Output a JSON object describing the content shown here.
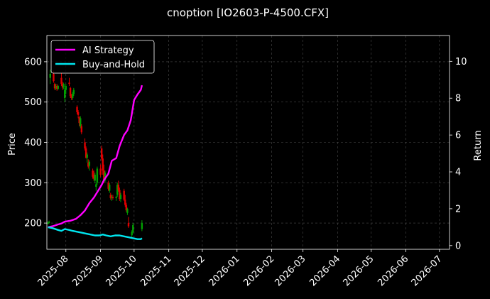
{
  "chart_data": {
    "type": "candlestick+line",
    "title": "cnoption [IO2603-P-4500.CFX]",
    "ylabel_left": "Price",
    "ylabel_right": "Return",
    "xlim": [
      "2025-07-15",
      "2026-07-10"
    ],
    "ylim_left": [
      135,
      665
    ],
    "ylim_right": [
      -0.2,
      11.4
    ],
    "grid": true,
    "legend_position": "upper-left",
    "colors": {
      "background": "#000000",
      "up": "#00a000",
      "down": "#e00000",
      "grid": "#4a4a4a",
      "ai_strategy": "#ff00ff",
      "buy_and_hold": "#00e5ee",
      "legend_border": "#ffffff"
    },
    "x_ticks": [
      "2025-08",
      "2025-09",
      "2025-10",
      "2025-11",
      "2025-12",
      "2026-01",
      "2026-02",
      "2026-03",
      "2026-04",
      "2026-05",
      "2026-06",
      "2026-07"
    ],
    "y_ticks_left": [
      200,
      300,
      400,
      500,
      600
    ],
    "y_ticks_right": [
      0,
      2,
      4,
      6,
      8,
      10
    ],
    "series": [
      {
        "name": "AI Strategy",
        "axis": "right",
        "points": [
          [
            "2025-07-16",
            1.0
          ],
          [
            "2025-07-20",
            1.05
          ],
          [
            "2025-07-25",
            1.15
          ],
          [
            "2025-07-28",
            1.2
          ],
          [
            "2025-07-31",
            1.3
          ],
          [
            "2025-08-05",
            1.35
          ],
          [
            "2025-08-10",
            1.45
          ],
          [
            "2025-08-14",
            1.65
          ],
          [
            "2025-08-18",
            1.9
          ],
          [
            "2025-08-22",
            2.3
          ],
          [
            "2025-08-26",
            2.6
          ],
          [
            "2025-08-29",
            2.9
          ],
          [
            "2025-09-02",
            3.3
          ],
          [
            "2025-09-04",
            3.55
          ],
          [
            "2025-09-08",
            3.9
          ],
          [
            "2025-09-11",
            4.6
          ],
          [
            "2025-09-15",
            4.75
          ],
          [
            "2025-09-18",
            5.4
          ],
          [
            "2025-09-22",
            6.0
          ],
          [
            "2025-09-25",
            6.25
          ],
          [
            "2025-09-28",
            6.8
          ],
          [
            "2025-10-01",
            7.9
          ],
          [
            "2025-10-04",
            8.2
          ],
          [
            "2025-10-07",
            8.45
          ],
          [
            "2025-10-08",
            8.7
          ]
        ]
      },
      {
        "name": "Buy-and-Hold",
        "axis": "right",
        "points": [
          [
            "2025-07-16",
            1.0
          ],
          [
            "2025-07-20",
            0.95
          ],
          [
            "2025-07-25",
            0.85
          ],
          [
            "2025-07-28",
            0.8
          ],
          [
            "2025-07-31",
            0.9
          ],
          [
            "2025-08-04",
            0.85
          ],
          [
            "2025-08-07",
            0.8
          ],
          [
            "2025-08-11",
            0.75
          ],
          [
            "2025-08-15",
            0.7
          ],
          [
            "2025-08-19",
            0.65
          ],
          [
            "2025-08-23",
            0.6
          ],
          [
            "2025-08-27",
            0.55
          ],
          [
            "2025-08-31",
            0.55
          ],
          [
            "2025-09-03",
            0.6
          ],
          [
            "2025-09-06",
            0.55
          ],
          [
            "2025-09-10",
            0.5
          ],
          [
            "2025-09-14",
            0.55
          ],
          [
            "2025-09-18",
            0.55
          ],
          [
            "2025-09-22",
            0.5
          ],
          [
            "2025-09-26",
            0.45
          ],
          [
            "2025-09-30",
            0.4
          ],
          [
            "2025-10-04",
            0.35
          ],
          [
            "2025-10-07",
            0.35
          ],
          [
            "2025-10-08",
            0.4
          ]
        ]
      }
    ],
    "candles": [
      [
        "2025-07-16",
        200,
        204,
        197,
        201
      ],
      [
        "2025-07-17",
        201,
        206,
        199,
        203
      ],
      [
        "2025-07-18",
        560,
        580,
        545,
        570
      ],
      [
        "2025-07-21",
        570,
        578,
        548,
        552
      ],
      [
        "2025-07-22",
        545,
        548,
        530,
        534
      ],
      [
        "2025-07-23",
        535,
        545,
        530,
        540
      ],
      [
        "2025-07-24",
        540,
        545,
        528,
        533
      ],
      [
        "2025-07-25",
        533,
        542,
        530,
        540
      ],
      [
        "2025-07-28",
        560,
        572,
        540,
        545
      ],
      [
        "2025-07-29",
        545,
        550,
        530,
        536
      ],
      [
        "2025-07-30",
        536,
        548,
        532,
        545
      ],
      [
        "2025-07-31",
        510,
        535,
        500,
        530
      ],
      [
        "2025-08-01",
        530,
        545,
        520,
        540
      ],
      [
        "2025-08-04",
        548,
        560,
        540,
        545
      ],
      [
        "2025-08-05",
        535,
        538,
        510,
        515
      ],
      [
        "2025-08-06",
        515,
        520,
        505,
        510
      ],
      [
        "2025-08-07",
        510,
        525,
        505,
        520
      ],
      [
        "2025-08-08",
        520,
        535,
        515,
        530
      ],
      [
        "2025-08-11",
        488,
        492,
        470,
        475
      ],
      [
        "2025-08-12",
        475,
        480,
        460,
        468
      ],
      [
        "2025-08-13",
        462,
        465,
        440,
        448
      ],
      [
        "2025-08-14",
        440,
        465,
        435,
        460
      ],
      [
        "2025-08-15",
        440,
        445,
        420,
        425
      ],
      [
        "2025-08-18",
        400,
        410,
        380,
        385
      ],
      [
        "2025-08-19",
        385,
        390,
        360,
        362
      ],
      [
        "2025-08-20",
        362,
        375,
        350,
        370
      ],
      [
        "2025-08-21",
        350,
        358,
        335,
        340
      ],
      [
        "2025-08-22",
        342,
        356,
        330,
        352
      ],
      [
        "2025-08-25",
        330,
        335,
        310,
        315
      ],
      [
        "2025-08-26",
        320,
        330,
        305,
        310
      ],
      [
        "2025-08-27",
        305,
        325,
        300,
        320
      ],
      [
        "2025-08-28",
        290,
        300,
        280,
        296
      ],
      [
        "2025-08-29",
        300,
        340,
        295,
        335
      ],
      [
        "2025-09-01",
        335,
        345,
        315,
        320
      ],
      [
        "2025-09-02",
        385,
        392,
        355,
        360
      ],
      [
        "2025-09-03",
        360,
        370,
        320,
        330
      ],
      [
        "2025-09-04",
        330,
        345,
        300,
        305
      ],
      [
        "2025-09-05",
        305,
        330,
        300,
        325
      ],
      [
        "2025-09-08",
        300,
        305,
        280,
        285
      ],
      [
        "2025-09-09",
        280,
        300,
        275,
        295
      ],
      [
        "2025-09-10",
        270,
        275,
        258,
        262
      ],
      [
        "2025-09-11",
        262,
        270,
        255,
        265
      ],
      [
        "2025-09-12",
        265,
        270,
        258,
        262
      ],
      [
        "2025-09-15",
        262,
        268,
        255,
        265
      ],
      [
        "2025-09-16",
        270,
        300,
        265,
        295
      ],
      [
        "2025-09-17",
        295,
        305,
        278,
        282
      ],
      [
        "2025-09-18",
        282,
        288,
        255,
        260
      ],
      [
        "2025-09-19",
        260,
        275,
        252,
        270
      ],
      [
        "2025-09-22",
        280,
        285,
        255,
        258
      ],
      [
        "2025-09-23",
        258,
        270,
        240,
        245
      ],
      [
        "2025-09-24",
        245,
        250,
        228,
        232
      ],
      [
        "2025-09-25",
        225,
        238,
        220,
        235
      ],
      [
        "2025-09-26",
        200,
        215,
        188,
        192
      ],
      [
        "2025-09-29",
        170,
        182,
        162,
        178
      ],
      [
        "2025-09-30",
        178,
        200,
        175,
        195
      ],
      [
        "2025-10-08",
        185,
        207,
        180,
        200
      ]
    ]
  }
}
